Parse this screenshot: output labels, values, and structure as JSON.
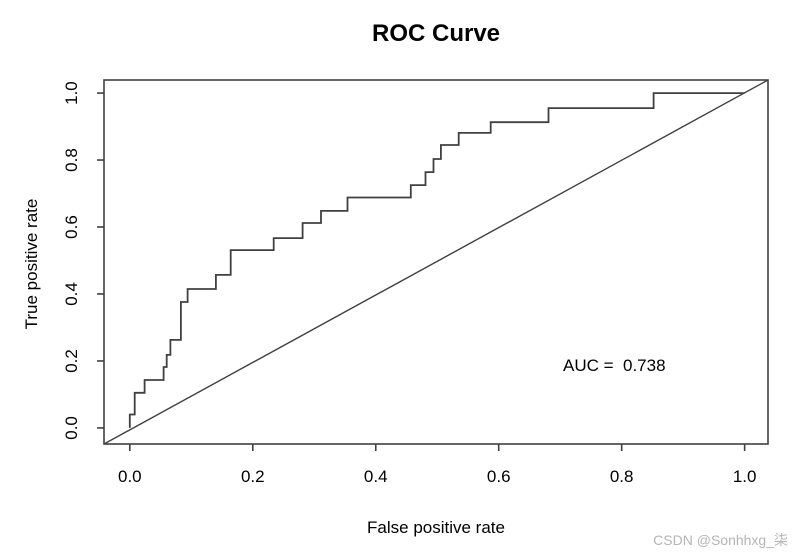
{
  "page": {
    "background": "#ffffff"
  },
  "chart_data": {
    "type": "line",
    "subtype": "roc-step-curve",
    "title": "ROC Curve",
    "xlabel": "False positive rate",
    "ylabel": "True positive rate",
    "xlim": [
      0,
      1
    ],
    "ylim": [
      0,
      1
    ],
    "grid": false,
    "legend": null,
    "box": true,
    "line_color": "#404040",
    "text_color": "#000000",
    "x_ticks": {
      "values": [
        0,
        0.2,
        0.4,
        0.6,
        0.8,
        1.0
      ],
      "labels": [
        "0.0",
        "0.2",
        "0.4",
        "0.6",
        "0.8",
        "1.0"
      ]
    },
    "y_ticks": {
      "values": [
        0,
        0.2,
        0.4,
        0.6,
        0.8,
        1.0
      ],
      "labels": [
        "0.0",
        "0.2",
        "0.4",
        "0.6",
        "0.8",
        "1.0"
      ]
    },
    "annotations": [
      {
        "text": "AUC =  0.738",
        "x": 0.705,
        "y": 0.185,
        "anchor": "start"
      }
    ],
    "auc": 0.738,
    "series": [
      {
        "name": "ROC curve",
        "style": "step",
        "color": "#404040",
        "points": [
          [
            0.0,
            0.0
          ],
          [
            0.0,
            0.04
          ],
          [
            0.008,
            0.105
          ],
          [
            0.024,
            0.143
          ],
          [
            0.055,
            0.182
          ],
          [
            0.06,
            0.218
          ],
          [
            0.066,
            0.263
          ],
          [
            0.083,
            0.376
          ],
          [
            0.094,
            0.415
          ],
          [
            0.14,
            0.457
          ],
          [
            0.164,
            0.531
          ],
          [
            0.234,
            0.567
          ],
          [
            0.281,
            0.612
          ],
          [
            0.311,
            0.648
          ],
          [
            0.354,
            0.688
          ],
          [
            0.457,
            0.725
          ],
          [
            0.481,
            0.764
          ],
          [
            0.494,
            0.803
          ],
          [
            0.506,
            0.845
          ],
          [
            0.535,
            0.881
          ],
          [
            0.587,
            0.913
          ],
          [
            0.681,
            0.955
          ],
          [
            0.852,
            1.0
          ],
          [
            1.0,
            1.0
          ]
        ]
      },
      {
        "name": "chance diagonal",
        "style": "line",
        "color": "#404040",
        "points": [
          [
            0,
            0
          ],
          [
            1,
            1
          ]
        ]
      }
    ]
  },
  "watermark": {
    "text": "CSDN @Sonhhxg_柒",
    "color": "#b5b5b5"
  }
}
